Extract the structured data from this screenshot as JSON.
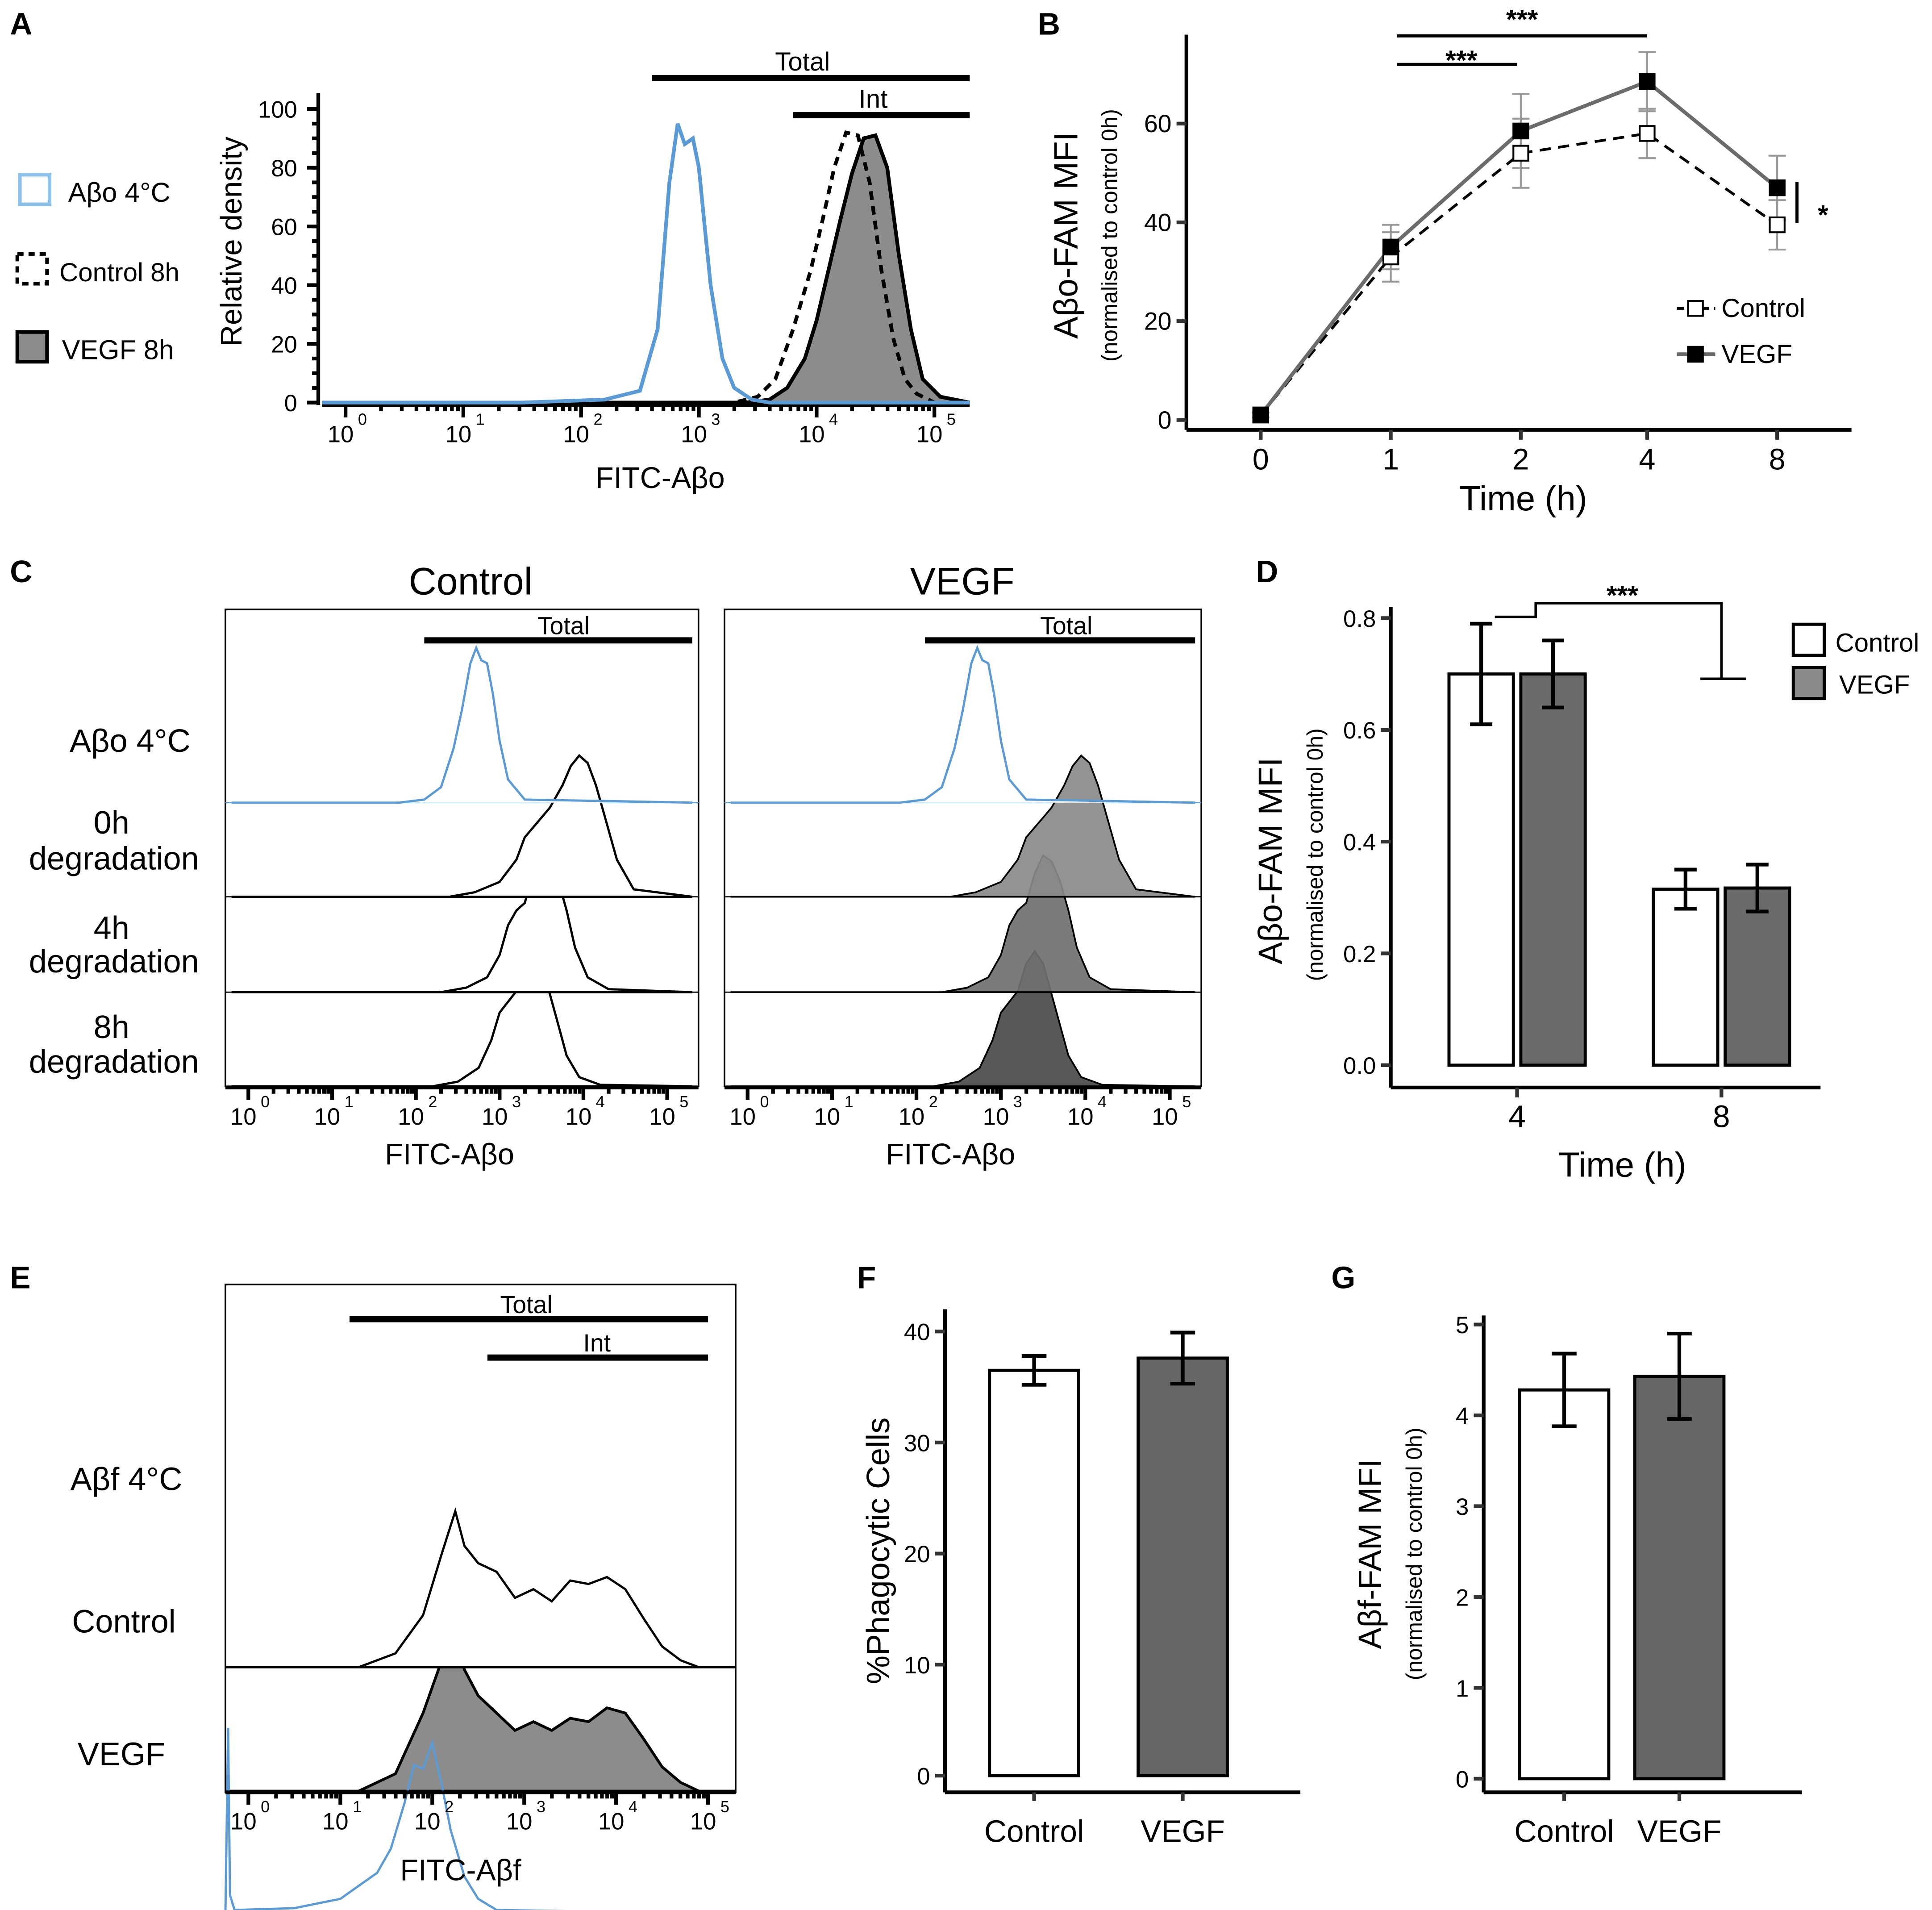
{
  "panel_letters": [
    "A",
    "B",
    "C",
    "D",
    "E",
    "F",
    "G"
  ],
  "chart_data": [
    {
      "id": "A",
      "type": "histogram",
      "xlabel": "FITC-Aβo",
      "ylabel": "Relative density",
      "x_ticks": [
        "10",
        "10",
        "10",
        "10",
        "10",
        "10"
      ],
      "x_tick_exp": [
        "0",
        "1",
        "2",
        "3",
        "4",
        "5"
      ],
      "y_ticks": [
        "0",
        "20",
        "40",
        "60",
        "80",
        "100"
      ],
      "ylim": [
        0,
        100
      ],
      "xlim_log10": [
        -0.2,
        5.3
      ],
      "gates": [
        {
          "label": "Total",
          "from_log10": 2.6,
          "to_log10": 5.3
        },
        {
          "label": "Int",
          "from_log10": 3.8,
          "to_log10": 5.3
        }
      ],
      "legend": [
        "Aβo 4°C",
        "Control 8h",
        "VEGF 8h"
      ],
      "series": [
        {
          "name": "Aβo 4°C",
          "style": "blue line",
          "x_log10": [
            -0.2,
            1.5,
            2.2,
            2.5,
            2.65,
            2.75,
            2.82,
            2.88,
            2.95,
            3.0,
            3.05,
            3.1,
            3.2,
            3.3,
            3.45,
            3.6,
            5.3
          ],
          "y": [
            0,
            0,
            1,
            4,
            25,
            75,
            95,
            88,
            90,
            80,
            60,
            40,
            15,
            5,
            1,
            0,
            0
          ]
        },
        {
          "name": "Control 8h",
          "style": "dashed line",
          "x_log10": [
            -0.2,
            3.3,
            3.5,
            3.65,
            3.8,
            3.95,
            4.05,
            4.15,
            4.25,
            4.35,
            4.45,
            4.55,
            4.65,
            4.75,
            4.85,
            5.0,
            5.3
          ],
          "y": [
            0,
            0,
            2,
            8,
            25,
            45,
            62,
            80,
            92,
            91,
            75,
            45,
            22,
            8,
            3,
            0,
            0
          ]
        },
        {
          "name": "VEGF 8h",
          "style": "grey filled",
          "x_log10": [
            -0.2,
            3.4,
            3.6,
            3.75,
            3.9,
            4.0,
            4.1,
            4.2,
            4.3,
            4.4,
            4.5,
            4.6,
            4.7,
            4.8,
            4.9,
            5.05,
            5.3
          ],
          "y": [
            0,
            0,
            1,
            5,
            15,
            28,
            45,
            62,
            78,
            90,
            91,
            80,
            50,
            25,
            8,
            2,
            0
          ]
        }
      ]
    },
    {
      "id": "B",
      "type": "line",
      "xlabel": "Time (h)",
      "ylabel": "Aβo-FAM MFI",
      "ylabel2": "(normalised to control 0h)",
      "categories": [
        "0",
        "1",
        "2",
        "4",
        "8"
      ],
      "y_ticks": [
        "0",
        "20",
        "40",
        "60"
      ],
      "ylim": [
        -2,
        78
      ],
      "series": [
        {
          "name": "Control",
          "values": [
            1,
            33,
            54,
            58,
            39.5
          ],
          "err": [
            0.5,
            5,
            7,
            5,
            5
          ],
          "style": "dashed, open squares"
        },
        {
          "name": "VEGF",
          "values": [
            1,
            35,
            58.5,
            68.5,
            47
          ],
          "err": [
            0.5,
            4.5,
            7.5,
            6,
            6.5
          ],
          "style": "solid grey, filled squares"
        }
      ],
      "annotations": [
        {
          "text": "***",
          "from": "1",
          "to": "4"
        },
        {
          "text": "***",
          "from": "1",
          "to": "2"
        },
        {
          "text": "*",
          "at": "8"
        }
      ],
      "legend_position": "bottom-right"
    },
    {
      "id": "C",
      "type": "offset histogram",
      "xlabel": "FITC-Aβo",
      "panels": [
        "Control",
        "VEGF"
      ],
      "gate": "Total",
      "row_labels": [
        [
          "Aβo 4°C"
        ],
        [
          "0h",
          "degradation"
        ],
        [
          "4h",
          "degradation"
        ],
        [
          "8h",
          "degradation"
        ]
      ],
      "x_ticks": [
        "10",
        "10",
        "10",
        "10",
        "10",
        "10"
      ],
      "x_tick_exp": [
        "0",
        "1",
        "2",
        "3",
        "4",
        "5"
      ],
      "rows": [
        {
          "name": "Aβo 4°C",
          "x_log10": [
            -0.2,
            1.8,
            2.1,
            2.3,
            2.45,
            2.55,
            2.65,
            2.72,
            2.78,
            2.85,
            2.92,
            3.0,
            3.1,
            3.3,
            5.3
          ],
          "y": [
            0,
            0,
            2,
            10,
            35,
            60,
            90,
            100,
            92,
            90,
            70,
            40,
            15,
            2,
            0
          ]
        },
        {
          "name": "0h degradation",
          "x_log10": [
            -0.2,
            2.4,
            2.7,
            3.0,
            3.2,
            3.3,
            3.45,
            3.6,
            3.75,
            3.85,
            3.95,
            4.05,
            4.15,
            4.25,
            4.4,
            4.6,
            5.3
          ],
          "y": [
            0,
            0,
            3,
            10,
            25,
            40,
            50,
            60,
            75,
            88,
            95,
            90,
            75,
            55,
            25,
            5,
            0
          ]
        },
        {
          "name": "4h degradation",
          "x_log10": [
            -0.2,
            2.3,
            2.6,
            2.85,
            3.0,
            3.1,
            3.2,
            3.3,
            3.4,
            3.5,
            3.6,
            3.7,
            3.8,
            3.9,
            4.05,
            4.3,
            5.3
          ],
          "y": [
            0,
            0,
            3,
            10,
            25,
            45,
            55,
            60,
            80,
            92,
            88,
            75,
            55,
            30,
            10,
            2,
            0
          ]
        },
        {
          "name": "8h degradation",
          "x_log10": [
            -0.2,
            2.2,
            2.5,
            2.75,
            2.9,
            3.0,
            3.1,
            3.2,
            3.3,
            3.4,
            3.5,
            3.6,
            3.7,
            3.8,
            3.95,
            4.2,
            5.3
          ],
          "y": [
            0,
            0,
            3,
            12,
            30,
            48,
            55,
            62,
            80,
            88,
            80,
            60,
            40,
            20,
            6,
            1,
            0
          ]
        }
      ]
    },
    {
      "id": "D",
      "type": "bar",
      "xlabel": "Time (h)",
      "ylabel": "Aβo-FAM MFI",
      "ylabel2": "(normalised to control 0h)",
      "categories": [
        "4",
        "8"
      ],
      "y_ticks": [
        "0.0",
        "0.2",
        "0.4",
        "0.6",
        "0.8"
      ],
      "ylim": [
        -0.04,
        0.82
      ],
      "series": [
        {
          "name": "Control",
          "values": [
            0.7,
            0.315
          ],
          "err": [
            0.09,
            0.035
          ],
          "color": "#ffffff"
        },
        {
          "name": "VEGF",
          "values": [
            0.7,
            0.317
          ],
          "err": [
            0.06,
            0.042
          ],
          "color": "#6b6b6b"
        }
      ],
      "annotation": "***",
      "legend_position": "top-right"
    },
    {
      "id": "E",
      "type": "offset histogram",
      "xlabel": "FITC-Aβf",
      "row_labels": [
        "Aβf 4°C",
        "Control",
        "VEGF"
      ],
      "gates": [
        {
          "label": "Total",
          "from_log10": 1.1,
          "to_log10": 5.0
        },
        {
          "label": "Int",
          "from_log10": 2.6,
          "to_log10": 5.0
        }
      ],
      "x_ticks": [
        "10",
        "10",
        "10",
        "10",
        "10",
        "10"
      ],
      "x_tick_exp": [
        "0",
        "1",
        "2",
        "3",
        "4",
        "5"
      ],
      "rows": [
        {
          "name": "Aβf 4°C",
          "x_log10": [
            -0.25,
            -0.22,
            -0.2,
            -0.15,
            0.5,
            0.8,
            1.0,
            1.2,
            1.4,
            1.55,
            1.7,
            1.8,
            1.9,
            2.0,
            2.1,
            2.2,
            2.35,
            2.5,
            2.7,
            5.3
          ],
          "y": [
            0,
            100,
            10,
            2,
            3,
            6,
            8,
            15,
            22,
            35,
            60,
            80,
            78,
            92,
            70,
            45,
            20,
            8,
            2,
            0
          ]
        },
        {
          "name": "Control",
          "x_log10": [
            -0.25,
            1.2,
            1.6,
            1.9,
            2.1,
            2.25,
            2.35,
            2.5,
            2.7,
            2.9,
            3.1,
            3.3,
            3.5,
            3.7,
            3.9,
            4.1,
            4.3,
            4.5,
            4.7,
            4.9,
            5.3
          ],
          "y": [
            0,
            0,
            8,
            30,
            65,
            90,
            70,
            60,
            55,
            40,
            45,
            38,
            50,
            48,
            52,
            45,
            28,
            12,
            4,
            0,
            0
          ]
        },
        {
          "name": "VEGF",
          "x_log10": [
            -0.25,
            1.2,
            1.6,
            1.9,
            2.1,
            2.25,
            2.35,
            2.5,
            2.7,
            2.9,
            3.1,
            3.3,
            3.5,
            3.7,
            3.9,
            4.1,
            4.3,
            4.5,
            4.7,
            4.9,
            5.3
          ],
          "y": [
            0,
            0,
            10,
            45,
            75,
            90,
            70,
            55,
            45,
            35,
            40,
            35,
            42,
            40,
            48,
            45,
            30,
            14,
            5,
            0,
            0
          ]
        }
      ]
    },
    {
      "id": "F",
      "type": "bar",
      "ylabel": "%Phagocytic Cells",
      "categories": [
        "Control",
        "VEGF"
      ],
      "values": [
        36.5,
        37.6
      ],
      "err": [
        1.3,
        2.3
      ],
      "colors": [
        "#ffffff",
        "#666666"
      ],
      "y_ticks": [
        "0",
        "10",
        "20",
        "30",
        "40"
      ],
      "ylim": [
        -1.5,
        42
      ]
    },
    {
      "id": "G",
      "type": "bar",
      "ylabel": "Aβf-FAM MFI",
      "ylabel2": "(normalised to control 0h)",
      "categories": [
        "Control",
        "VEGF"
      ],
      "values": [
        4.28,
        4.43
      ],
      "err": [
        0.4,
        0.47
      ],
      "colors": [
        "#ffffff",
        "#666666"
      ],
      "y_ticks": [
        "0",
        "1",
        "2",
        "3",
        "4",
        "5"
      ],
      "ylim": [
        -0.15,
        5.1
      ]
    }
  ]
}
